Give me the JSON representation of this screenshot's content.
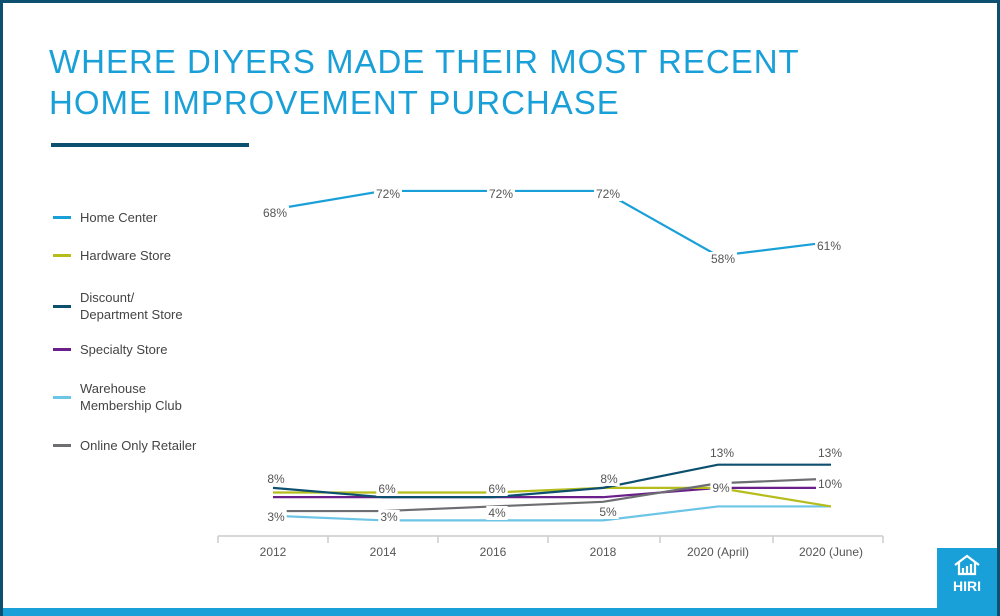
{
  "title": "WHERE DIYERS MADE THEIR MOST RECENT HOME IMPROVEMENT PURCHASE",
  "logo_text": "HIRI",
  "chart_data": {
    "type": "line",
    "categories": [
      "2012",
      "2014",
      "2016",
      "2018",
      "2020 (April)",
      "2020 (June)"
    ],
    "ylim": [
      0,
      75
    ],
    "grid": false,
    "legend_placement": "left",
    "series": [
      {
        "name": "Home Center",
        "color": "#1aa0d8",
        "values": [
          68,
          72,
          72,
          72,
          58,
          61
        ],
        "labels": [
          "68%",
          "72%",
          "72%",
          "72%",
          "58%",
          "61%"
        ]
      },
      {
        "name": "Hardware Store",
        "color": "#b5bd1c",
        "values": [
          7,
          7,
          7,
          8,
          8,
          4
        ]
      },
      {
        "name": "Discount/\nDepartment Store",
        "color": "#0d4f6e",
        "values": [
          8,
          6,
          6,
          8,
          13,
          13
        ],
        "labels": [
          "8%",
          "6%",
          "6%",
          "8%",
          "13%",
          "13%"
        ]
      },
      {
        "name": "Specialty Store",
        "color": "#6b1f8a",
        "values": [
          6,
          6,
          6,
          6,
          8,
          8
        ]
      },
      {
        "name": "Warehouse\nMembership Club",
        "color": "#6cc4e6",
        "values": [
          2,
          1,
          1,
          1,
          4,
          4
        ]
      },
      {
        "name": "Online Only Retailer",
        "color": "#6d6e71",
        "values": [
          3,
          3,
          4,
          5,
          9,
          10
        ],
        "labels": [
          "3%",
          "3%",
          "4%",
          "5%",
          "9%",
          "10%"
        ]
      }
    ]
  }
}
